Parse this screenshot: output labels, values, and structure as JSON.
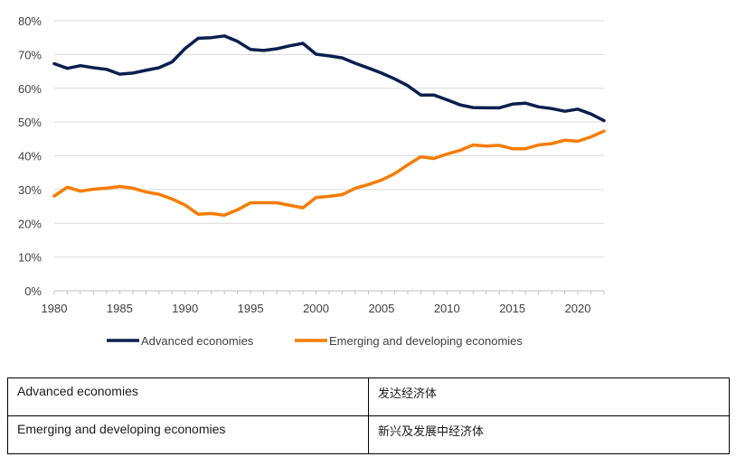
{
  "chart_data": {
    "type": "line",
    "title": "",
    "xlabel": "",
    "ylabel": "",
    "x": [
      1980,
      1981,
      1982,
      1983,
      1984,
      1985,
      1986,
      1987,
      1988,
      1989,
      1990,
      1991,
      1992,
      1993,
      1994,
      1995,
      1996,
      1997,
      1998,
      1999,
      2000,
      2001,
      2002,
      2003,
      2004,
      2005,
      2006,
      2007,
      2008,
      2009,
      2010,
      2011,
      2012,
      2013,
      2014,
      2015,
      2016,
      2017,
      2018,
      2019,
      2020,
      2021,
      2022
    ],
    "xlim": [
      1980,
      2022
    ],
    "ylim": [
      0,
      80
    ],
    "x_ticks": [
      1980,
      1985,
      1990,
      1995,
      2000,
      2005,
      2010,
      2015,
      2020
    ],
    "x_tick_labels": [
      "1980",
      "1985",
      "1990",
      "1995",
      "2000",
      "2005",
      "2010",
      "2015",
      "2020"
    ],
    "y_ticks": [
      0,
      10,
      20,
      30,
      40,
      50,
      60,
      70,
      80
    ],
    "y_tick_labels": [
      "0%",
      "10%",
      "20%",
      "30%",
      "40%",
      "50%",
      "60%",
      "70%",
      "80%"
    ],
    "grid": true,
    "legend_position": "bottom",
    "series": [
      {
        "name": "Advanced economies",
        "color": "#0b1f4d",
        "values": [
          67.3,
          65.9,
          66.7,
          66.1,
          65.6,
          64.2,
          64.5,
          65.3,
          66.1,
          67.8,
          71.8,
          74.8,
          75.0,
          75.5,
          73.9,
          71.5,
          71.2,
          71.7,
          72.6,
          73.3,
          70.1,
          69.6,
          69.0,
          67.4,
          66.0,
          64.5,
          62.8,
          60.8,
          58.0,
          58.0,
          56.6,
          55.1,
          54.3,
          54.2,
          54.2,
          55.3,
          55.6,
          54.5,
          54.0,
          53.2,
          53.8,
          52.4,
          50.4
        ]
      },
      {
        "name": "Emerging and developing economies",
        "color": "#f57c00",
        "values": [
          28.1,
          30.7,
          29.5,
          30.1,
          30.4,
          30.9,
          30.4,
          29.3,
          28.6,
          27.2,
          25.4,
          22.7,
          22.9,
          22.4,
          24.0,
          26.1,
          26.1,
          26.1,
          25.3,
          24.6,
          27.6,
          28.0,
          28.5,
          30.4,
          31.5,
          32.8,
          34.7,
          37.3,
          39.7,
          39.2,
          40.5,
          41.6,
          43.2,
          42.9,
          43.1,
          42.1,
          42.1,
          43.2,
          43.6,
          44.6,
          44.3,
          45.6,
          47.3
        ]
      }
    ]
  },
  "table": {
    "rows": [
      {
        "english": "Advanced economies",
        "chinese": "发达经济体"
      },
      {
        "english": "Emerging and developing economies",
        "chinese": "新兴及发展中经济体"
      }
    ]
  }
}
